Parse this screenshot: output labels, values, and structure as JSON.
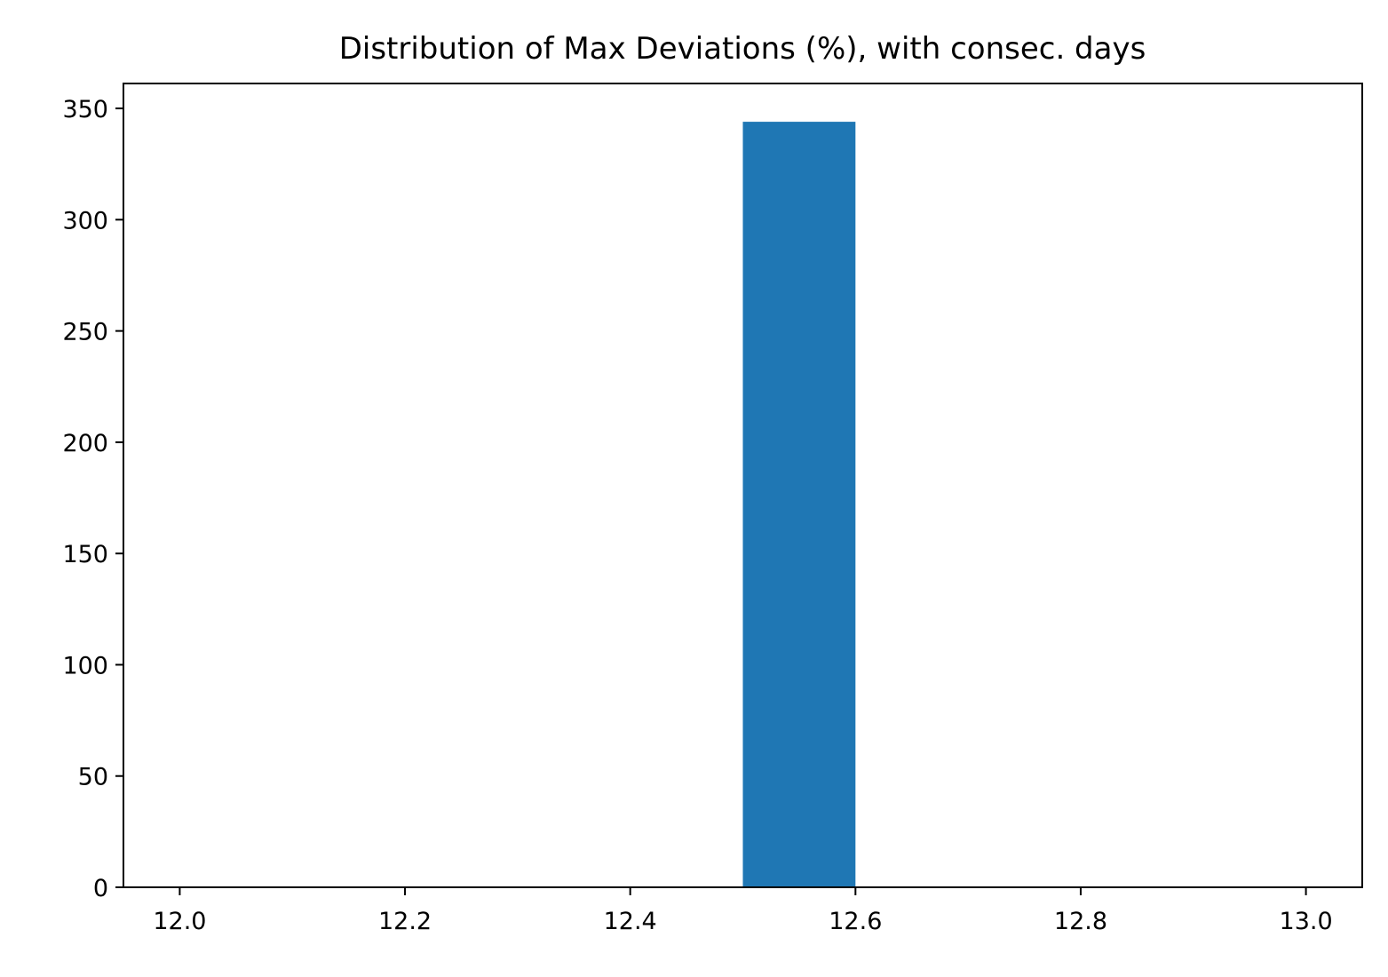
{
  "chart_data": {
    "type": "bar",
    "title": "Distribution of Max Deviations (%), with consec. days",
    "xlabel": "",
    "ylabel": "",
    "xlim": [
      11.95,
      13.05
    ],
    "ylim": [
      0,
      361.2
    ],
    "bins": [
      {
        "x0": 12.5,
        "x1": 12.6,
        "count": 344
      }
    ],
    "xticks": [
      12.0,
      12.2,
      12.4,
      12.6,
      12.8,
      13.0
    ],
    "xtick_labels": [
      "12.0",
      "12.2",
      "12.4",
      "12.6",
      "12.8",
      "13.0"
    ],
    "yticks": [
      0,
      50,
      100,
      150,
      200,
      250,
      300,
      350
    ],
    "ytick_labels": [
      "0",
      "50",
      "100",
      "150",
      "200",
      "250",
      "300",
      "350"
    ],
    "grid": false,
    "colors": {
      "bar": "#1f77b4",
      "axes": "#000000"
    }
  }
}
